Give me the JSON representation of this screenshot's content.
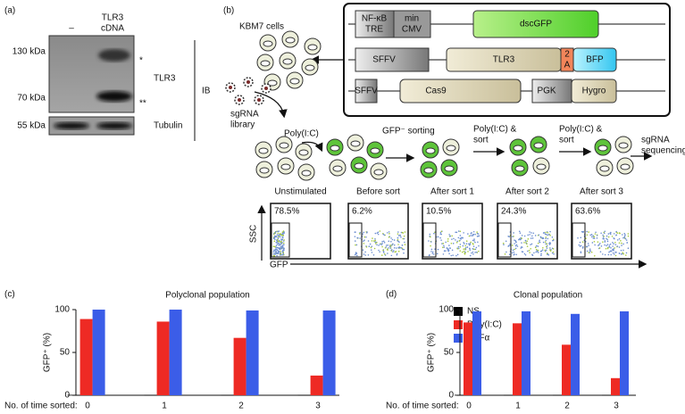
{
  "panel_a": {
    "label": "(a)",
    "lane_1": "–",
    "lane_2": [
      "TLR3",
      "cDNA"
    ],
    "markers": [
      "130 kDa",
      "70 kDa",
      "55 kDa"
    ],
    "bands": [
      "*",
      "**"
    ],
    "proteins": [
      "TLR3",
      "Tubulin"
    ],
    "method": "IB"
  },
  "panel_b": {
    "label": "(b)",
    "cells": "KBM7 cells",
    "library": [
      "sgRNA",
      "library"
    ],
    "constructs": [
      [
        "NF-κB",
        "TRE",
        "min",
        "CMV",
        "dscGFP"
      ],
      [
        "SFFV",
        "TLR3",
        "2",
        "A",
        "BFP"
      ],
      [
        "SFFV",
        "Cas9",
        "PGK",
        "Hygro"
      ]
    ],
    "steps": [
      "Poly(I:C)",
      "GFP⁻ sorting",
      [
        "Poly(I:C) &",
        "sort"
      ],
      [
        "Poly(I:C) &",
        "sort"
      ],
      [
        "sgRNA",
        "sequencing"
      ]
    ],
    "plots": [
      {
        "name": "Unstimulated",
        "gate": "78.5%"
      },
      {
        "name": "Before sort",
        "gate": "6.2%"
      },
      {
        "name": "After sort 1",
        "gate": "10.5%"
      },
      {
        "name": "After sort 2",
        "gate": "24.3%"
      },
      {
        "name": "After sort 3",
        "gate": "63.6%"
      }
    ],
    "yaxis": "SSC",
    "xaxis": "GFP"
  },
  "chart_data": [
    {
      "type": "bar",
      "label": "(c)",
      "title": "Polyclonal population",
      "xlabel": "No. of time sorted:",
      "ylabel": "GFP⁺ (%)",
      "categories": [
        "0",
        "1",
        "2",
        "3"
      ],
      "series": [
        {
          "name": "NS",
          "color": "#000000",
          "values": [
            0.5,
            0.5,
            0.5,
            0.5
          ]
        },
        {
          "name": "Poly(I:C)",
          "color": "#ee2a24",
          "values": [
            89,
            86,
            67,
            23
          ]
        },
        {
          "name": "TNFα",
          "color": "#3b5de8",
          "values": [
            100,
            100,
            99,
            99
          ]
        }
      ],
      "ylim": [
        0,
        100
      ],
      "yticks": [
        0,
        50,
        100
      ],
      "legend": "right"
    },
    {
      "type": "bar",
      "label": "(d)",
      "title": "Clonal population",
      "xlabel": "No. of time sorted:",
      "ylabel": "GFP⁺ (%)",
      "categories": [
        "0",
        "1",
        "2",
        "3"
      ],
      "series": [
        {
          "name": "NS",
          "color": "#000000",
          "values": [
            0.5,
            0.5,
            0.5,
            0.5
          ]
        },
        {
          "name": "Poly(I:C)",
          "color": "#ee2a24",
          "values": [
            85,
            84,
            59,
            20
          ]
        },
        {
          "name": "TNFα",
          "color": "#3b5de8",
          "values": [
            98,
            98,
            95,
            98
          ]
        }
      ],
      "ylim": [
        0,
        100
      ],
      "yticks": [
        0,
        50,
        100
      ]
    }
  ]
}
